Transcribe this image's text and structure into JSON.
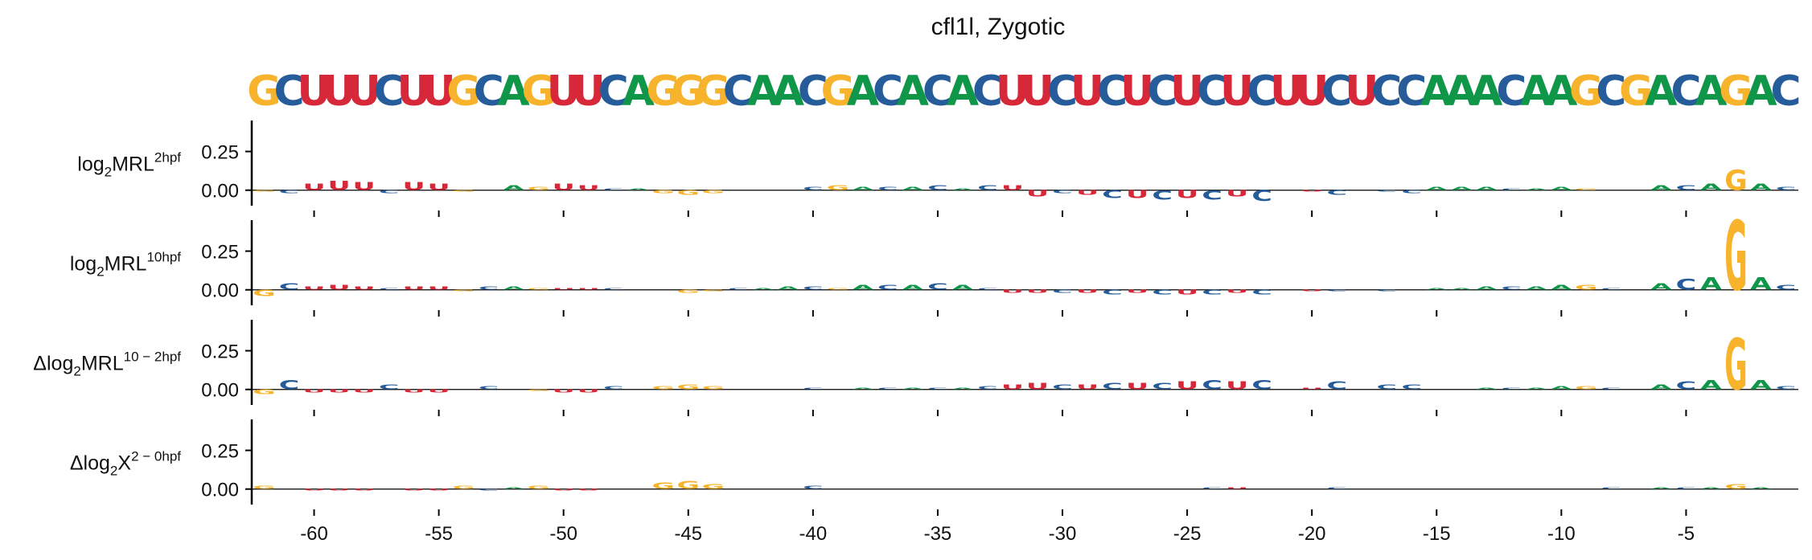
{
  "chart_data": {
    "type": "sequence-logo",
    "title": "cfl1l, Zygotic",
    "sequence": "GCUUUCUUGCAGUUCAGGGCAACGACACACUUCUCUCUCUCUUCUCCAAACAAGCGACAGAC",
    "positions": [
      -62,
      -61,
      -60,
      -59,
      -58,
      -57,
      -56,
      -55,
      -54,
      -53,
      -52,
      -51,
      -50,
      -49,
      -48,
      -47,
      -46,
      -45,
      -44,
      -43,
      -42,
      -41,
      -40,
      -39,
      -38,
      -37,
      -36,
      -35,
      -34,
      -33,
      -32,
      -31,
      -30,
      -29,
      -28,
      -27,
      -26,
      -25,
      -24,
      -23,
      -22,
      -21,
      -20,
      -19,
      -18,
      -17,
      -16,
      -15,
      -14,
      -13,
      -12,
      -11,
      -10,
      -9,
      -8,
      -7,
      -6,
      -5,
      -4,
      -3,
      -2,
      -1
    ],
    "x_ticks": [
      -60,
      -55,
      -50,
      -45,
      -40,
      -35,
      -30,
      -25,
      -20,
      -15,
      -10,
      -5
    ],
    "x_tick_labels": [
      "-60",
      "-55",
      "-50",
      "-45",
      "-40",
      "-35",
      "-30",
      "-25",
      "-20",
      "-15",
      "-10",
      "-5"
    ],
    "y_ticks": [
      0.25,
      0.0
    ],
    "y_tick_labels": [
      "0.25",
      "0.00"
    ],
    "ylim": [
      -0.1,
      0.45
    ],
    "colors": {
      "A": "#109648",
      "C": "#255C99",
      "G": "#F7B32B",
      "U": "#D62839"
    },
    "tracks": [
      {
        "label_base": "log",
        "label_sub": "2",
        "label_main": "MRL",
        "label_sup": "2hpf",
        "values": [
          -0.01,
          -0.02,
          0.04,
          0.06,
          0.05,
          -0.02,
          0.05,
          0.04,
          -0.01,
          0.0,
          0.03,
          0.02,
          0.04,
          0.03,
          0.01,
          0.01,
          -0.02,
          -0.03,
          -0.02,
          0.0,
          0.0,
          0.0,
          0.02,
          0.03,
          0.02,
          0.02,
          0.02,
          0.03,
          0.01,
          0.03,
          0.03,
          -0.04,
          -0.02,
          -0.03,
          -0.05,
          -0.05,
          -0.06,
          -0.05,
          -0.06,
          -0.04,
          -0.07,
          0.0,
          -0.01,
          -0.03,
          0.0,
          -0.01,
          -0.02,
          0.02,
          0.02,
          0.02,
          0.01,
          0.01,
          0.02,
          0.01,
          0.0,
          0.0,
          0.03,
          0.03,
          0.04,
          0.13,
          0.04,
          0.02
        ]
      },
      {
        "label_base": "log",
        "label_sub": "2",
        "label_main": "MRL",
        "label_sup": "10hpf",
        "values": [
          -0.04,
          0.04,
          0.02,
          0.03,
          0.02,
          0.01,
          0.02,
          0.02,
          -0.01,
          0.02,
          0.02,
          0.01,
          0.01,
          0.01,
          0.01,
          0.0,
          0.0,
          -0.02,
          -0.01,
          0.01,
          0.01,
          0.02,
          0.02,
          0.01,
          0.03,
          0.03,
          0.03,
          0.04,
          0.03,
          0.01,
          -0.02,
          -0.02,
          -0.02,
          -0.02,
          -0.03,
          -0.02,
          -0.03,
          -0.03,
          -0.03,
          -0.02,
          -0.03,
          0.0,
          -0.01,
          -0.01,
          0.0,
          -0.01,
          0.0,
          0.01,
          0.01,
          0.02,
          0.02,
          0.02,
          0.03,
          0.03,
          0.01,
          0.0,
          0.04,
          0.07,
          0.08,
          0.45,
          0.08,
          0.03
        ]
      },
      {
        "label_base": "Δlog",
        "label_sub": "2",
        "label_main": "MRL",
        "label_sup": "10 − 2hpf",
        "values": [
          -0.03,
          0.06,
          -0.02,
          -0.02,
          -0.02,
          0.03,
          -0.02,
          -0.02,
          0.0,
          0.02,
          0.0,
          -0.01,
          -0.02,
          -0.02,
          0.02,
          0.0,
          0.02,
          0.03,
          0.02,
          0.0,
          0.0,
          0.0,
          0.01,
          0.0,
          0.01,
          0.01,
          0.01,
          0.01,
          0.01,
          0.02,
          0.03,
          0.04,
          0.03,
          0.03,
          0.04,
          0.04,
          0.04,
          0.05,
          0.06,
          0.05,
          0.06,
          0.0,
          0.01,
          0.05,
          0.0,
          0.03,
          0.03,
          0.0,
          0.0,
          0.01,
          0.01,
          0.01,
          0.02,
          0.02,
          0.01,
          0.0,
          0.03,
          0.05,
          0.06,
          0.33,
          0.06,
          0.02
        ]
      },
      {
        "label_base": "Δlog",
        "label_sub": "2",
        "label_main": "X",
        "label_sup": "2 − 0hpf",
        "values": [
          0.02,
          0.0,
          -0.01,
          -0.01,
          -0.01,
          0.0,
          -0.01,
          -0.01,
          0.02,
          -0.01,
          0.01,
          0.02,
          -0.01,
          -0.01,
          0.0,
          0.0,
          0.04,
          0.05,
          0.03,
          0.0,
          0.0,
          0.0,
          0.02,
          0.0,
          0.0,
          0.0,
          0.0,
          0.0,
          0.0,
          0.0,
          0.0,
          0.0,
          0.0,
          0.0,
          0.0,
          0.0,
          0.0,
          0.0,
          0.01,
          0.01,
          0.0,
          0.0,
          0.0,
          0.01,
          0.0,
          0.0,
          0.0,
          0.0,
          0.0,
          0.0,
          0.0,
          0.0,
          0.0,
          0.0,
          0.01,
          0.0,
          0.01,
          0.01,
          0.01,
          0.03,
          0.01,
          0.0
        ]
      }
    ]
  }
}
